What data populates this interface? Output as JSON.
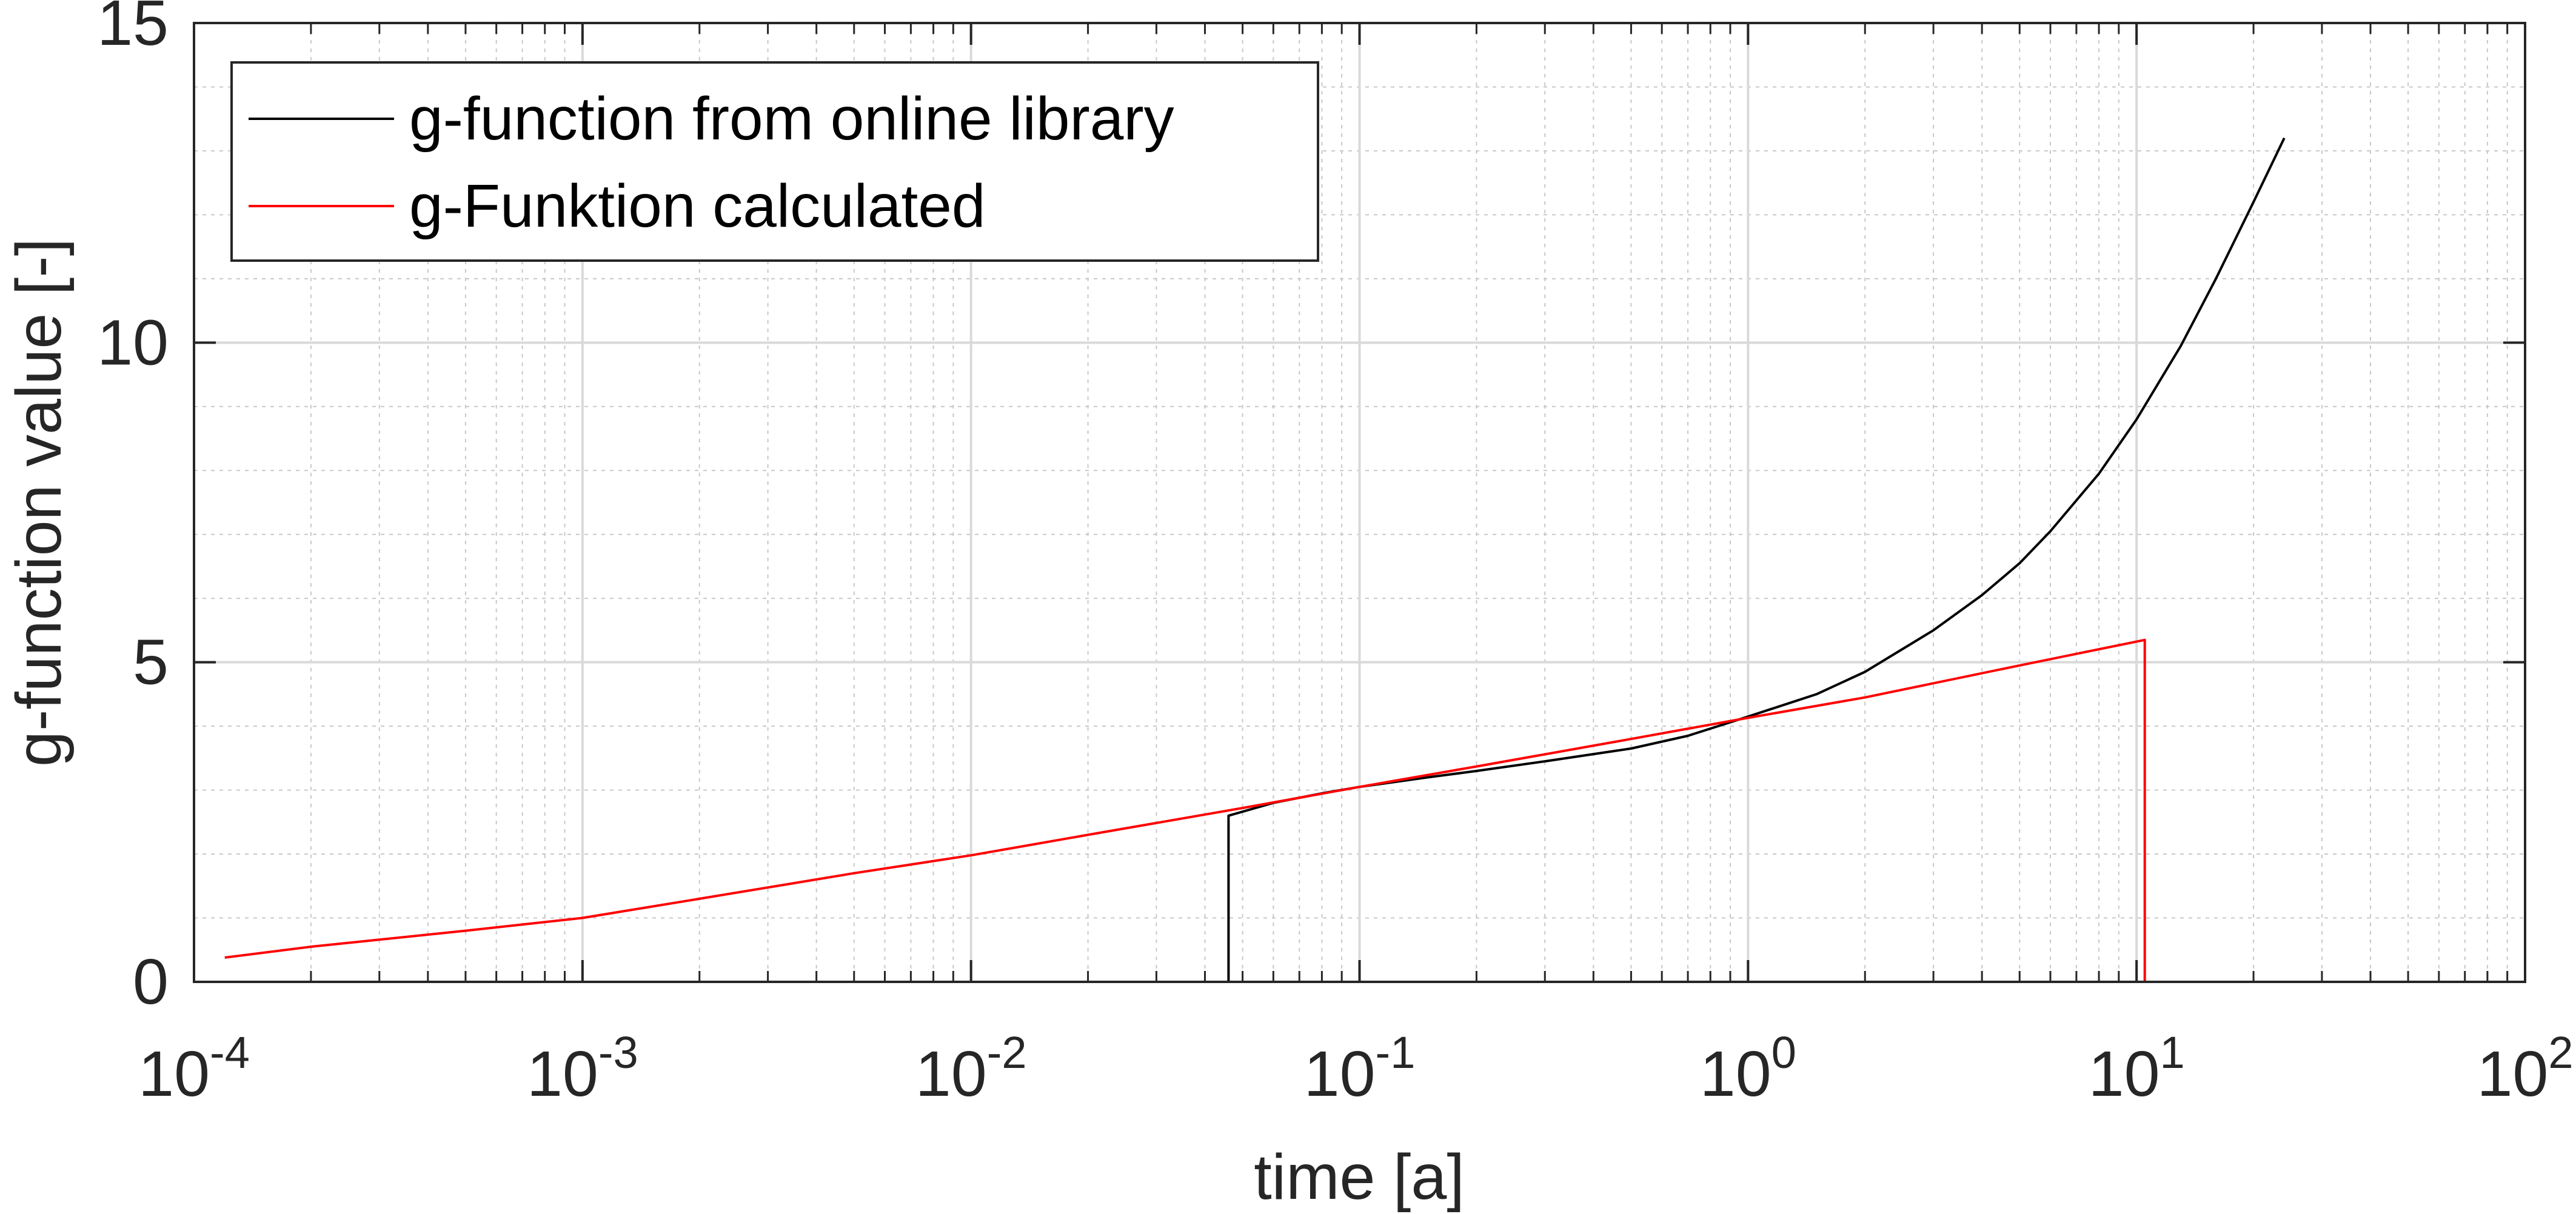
{
  "chart_data": {
    "type": "line",
    "title": "",
    "xlabel": "time [a]",
    "ylabel": "g-function value [-]",
    "x_scale": "log",
    "xlim": [
      0.0001,
      100
    ],
    "ylim": [
      0,
      15
    ],
    "grid": true,
    "minor_grid": true,
    "legend_position": "top-left",
    "x_ticks": [
      {
        "base": "10",
        "exp": "-4",
        "value": 0.0001
      },
      {
        "base": "10",
        "exp": "-3",
        "value": 0.001
      },
      {
        "base": "10",
        "exp": "-2",
        "value": 0.01
      },
      {
        "base": "10",
        "exp": "-1",
        "value": 0.1
      },
      {
        "base": "10",
        "exp": "0",
        "value": 1
      },
      {
        "base": "10",
        "exp": "1",
        "value": 10
      },
      {
        "base": "10",
        "exp": "2",
        "value": 100
      }
    ],
    "y_ticks": [
      {
        "label": "0",
        "value": 0
      },
      {
        "label": "5",
        "value": 5
      },
      {
        "label": "10",
        "value": 10
      },
      {
        "label": "15",
        "value": 15
      }
    ],
    "series": [
      {
        "name": "g-function from online library",
        "color": "#000000",
        "points": [
          [
            0.046,
            0.0
          ],
          [
            0.046,
            2.6
          ],
          [
            0.06,
            2.8
          ],
          [
            0.08,
            2.95
          ],
          [
            0.1,
            3.05
          ],
          [
            0.15,
            3.2
          ],
          [
            0.2,
            3.3
          ],
          [
            0.3,
            3.45
          ],
          [
            0.5,
            3.65
          ],
          [
            0.7,
            3.85
          ],
          [
            1.0,
            4.15
          ],
          [
            1.5,
            4.5
          ],
          [
            2.0,
            4.85
          ],
          [
            3.0,
            5.5
          ],
          [
            4.0,
            6.05
          ],
          [
            5.0,
            6.55
          ],
          [
            6.0,
            7.05
          ],
          [
            8.0,
            7.95
          ],
          [
            10.0,
            8.8
          ],
          [
            13.0,
            9.95
          ],
          [
            16.0,
            11.0
          ],
          [
            20.0,
            12.2
          ],
          [
            24.0,
            13.2
          ]
        ]
      },
      {
        "name": "g-Funktion calculated",
        "color": "#ff0000",
        "points": [
          [
            0.00012,
            0.38
          ],
          [
            0.0002,
            0.55
          ],
          [
            0.0005,
            0.8
          ],
          [
            0.001,
            1.0
          ],
          [
            0.002,
            1.3
          ],
          [
            0.005,
            1.7
          ],
          [
            0.01,
            1.98
          ],
          [
            0.02,
            2.3
          ],
          [
            0.05,
            2.72
          ],
          [
            0.1,
            3.05
          ],
          [
            0.2,
            3.37
          ],
          [
            0.5,
            3.8
          ],
          [
            1.0,
            4.13
          ],
          [
            2.0,
            4.45
          ],
          [
            5.0,
            4.95
          ],
          [
            10.5,
            5.35
          ],
          [
            10.5,
            0.0
          ],
          [
            24.0,
            0.0
          ]
        ]
      }
    ]
  }
}
